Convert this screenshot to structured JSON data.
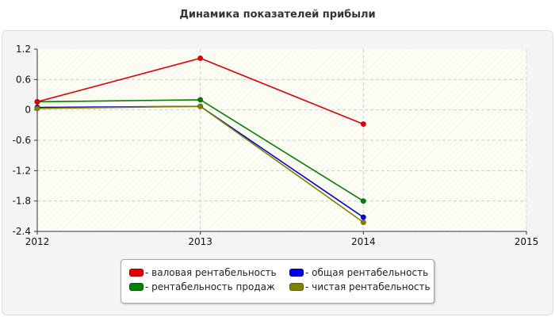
{
  "chart_data": {
    "type": "line",
    "title": "Динамика показателей прибыли",
    "x_ticks": [
      "2012",
      "2013",
      "2014",
      "2015"
    ],
    "y_ticks": [
      "1.2",
      "0.6",
      "0",
      "-0.6",
      "-1.2",
      "-1.8",
      "-2.4"
    ],
    "xlim": [
      2012,
      2015
    ],
    "ylim": [
      -2.4,
      1.2
    ],
    "grid": true,
    "legend_position": "bottom",
    "series": [
      {
        "name": "- валовая рентабельность",
        "color": "#e00000",
        "x": [
          2012,
          2013,
          2014
        ],
        "y": [
          0.16,
          1.02,
          -0.28
        ]
      },
      {
        "name": "- общая рентабельность",
        "color": "#0000e0",
        "x": [
          2012,
          2013,
          2014
        ],
        "y": [
          0.05,
          0.07,
          -2.12
        ]
      },
      {
        "name": "- рентабельность продаж",
        "color": "#008000",
        "x": [
          2012,
          2013,
          2014
        ],
        "y": [
          0.16,
          0.2,
          -1.8
        ]
      },
      {
        "name": "- чистая рентабельность",
        "color": "#808000",
        "x": [
          2012,
          2013,
          2014
        ],
        "y": [
          0.03,
          0.07,
          -2.22
        ]
      }
    ]
  }
}
